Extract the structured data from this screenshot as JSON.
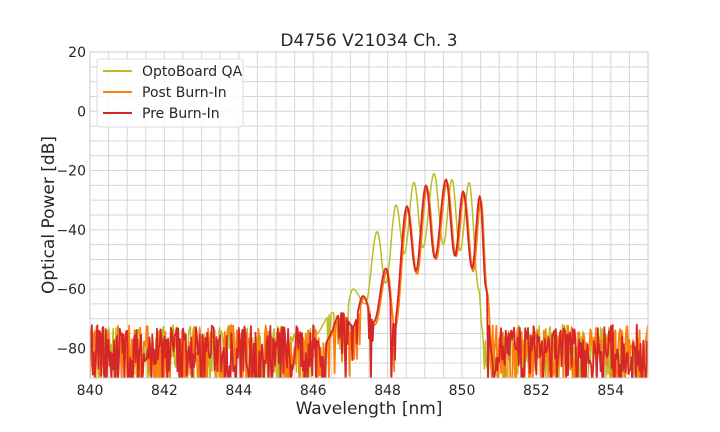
{
  "chart_data": {
    "type": "line",
    "title": "D4756 V21034 Ch. 3",
    "xlabel": "Wavelength [nm]",
    "ylabel": "Optical Power [dB]",
    "xlim": [
      840,
      855
    ],
    "ylim": [
      -90,
      20
    ],
    "xticks": [
      840,
      842,
      844,
      846,
      848,
      850,
      852,
      854
    ],
    "yticks": [
      20,
      0,
      -20,
      -40,
      -60,
      -80
    ],
    "xtick_labels": [
      "840",
      "842",
      "844",
      "846",
      "848",
      "850",
      "852",
      "854"
    ],
    "ytick_labels": [
      "20",
      "0",
      "−20",
      "−40",
      "−60",
      "−80"
    ],
    "grid": true,
    "legend_position": "top-left",
    "noise_floor_range": [
      -90,
      -72
    ],
    "series": [
      {
        "name": "OptoBoard QA",
        "color": "#bcbd22",
        "x": [
          846.0,
          846.53,
          846.8,
          847.07,
          847.4,
          847.72,
          847.95,
          848.23,
          848.45,
          848.71,
          848.95,
          849.25,
          849.5,
          849.73,
          849.95,
          850.19,
          850.45,
          850.55,
          850.62
        ],
        "y": [
          -76,
          -68,
          -72,
          -60,
          -65,
          -40.6,
          -58,
          -31.6,
          -48,
          -24,
          -46,
          -21,
          -45,
          -23,
          -47,
          -24,
          -60,
          -74,
          -90
        ]
      },
      {
        "name": "Post Burn-In",
        "color": "#ff7f0e",
        "x": [
          846.33,
          846.8,
          847.1,
          847.37,
          847.66,
          847.99,
          848.2,
          848.55,
          848.79,
          849.06,
          849.3,
          849.6,
          849.84,
          850.06,
          850.3,
          850.51,
          850.68,
          850.8
        ],
        "y": [
          -78,
          -69,
          -73,
          -63,
          -72,
          -54,
          -73,
          -33,
          -55,
          -26,
          -50,
          -24,
          -49,
          -28,
          -54,
          -30,
          -61,
          -80
        ]
      },
      {
        "name": "Pre Burn-In",
        "color": "#d62728",
        "x": [
          846.3,
          846.77,
          847.07,
          847.34,
          847.63,
          847.96,
          848.17,
          848.52,
          848.76,
          849.03,
          849.27,
          849.57,
          849.81,
          850.03,
          850.27,
          850.48,
          850.65,
          850.78
        ],
        "y": [
          -78,
          -68,
          -72.5,
          -62.3,
          -71,
          -53,
          -72,
          -32,
          -54,
          -25,
          -49.5,
          -23,
          -48.8,
          -27,
          -53,
          -28.6,
          -60,
          -80
        ]
      }
    ]
  }
}
